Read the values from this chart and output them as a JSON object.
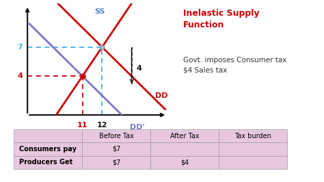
{
  "title_text": "Inelastic Supply\nFunction",
  "subtitle_text": "Govt. imposes Consumer tax\n$4 Sales tax",
  "title_color": "#cc0000",
  "subtitle_color": "#333333",
  "bg_color": "#ffffff",
  "graph_bg": "#ffffff",
  "supply_color": "#cc0000",
  "demand_dd_color": "#cc0000",
  "demand_dd_new_color": "#7777cc",
  "supply_top_color": "#7777cc",
  "supply_label": "SS",
  "demand_label": "DD",
  "demand_new_label": "DD'",
  "axis_color": "#111111",
  "dashed_blue_color": "#44aaee",
  "dashed_red_color": "#cc0000",
  "point_original_color": "#aabbcc",
  "point_new_color": "#cc0000",
  "arrow_color": "#111111",
  "tax_label": "4",
  "x_lim": [
    7.5,
    15.5
  ],
  "y_lim": [
    0,
    11.5
  ],
  "yaxis_x": 8.2,
  "eq_orig": [
    12,
    7
  ],
  "eq_new": [
    11,
    4
  ],
  "table_header": [
    "",
    "Before Tax",
    "After Tax",
    "Tax burden"
  ],
  "table_rows": [
    [
      "Consumers pay",
      "$7",
      "",
      ""
    ],
    [
      "Producers Get",
      "$7",
      "$4",
      ""
    ]
  ],
  "table_bg_color": "#e8c8e0",
  "table_line_color": "#999999",
  "supply_ss_label_color": "#5588cc",
  "ss_label_fontsize": 8,
  "dd_label_fontsize": 8
}
